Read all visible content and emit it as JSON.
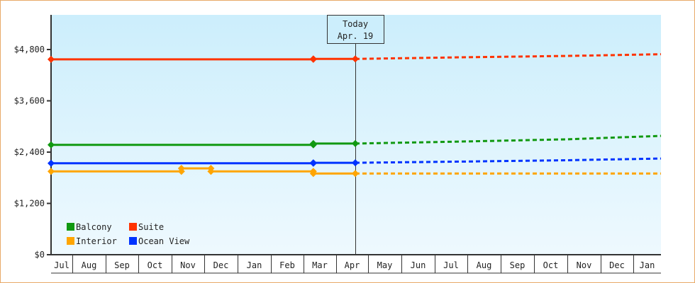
{
  "chart_data": {
    "type": "line",
    "title": "",
    "xlabel": "",
    "ylabel": "",
    "ylim": [
      0,
      5600
    ],
    "yticks": [
      {
        "value": 0,
        "label": "$0"
      },
      {
        "value": 1200,
        "label": "$1,200"
      },
      {
        "value": 2400,
        "label": "$2,400"
      },
      {
        "value": 3600,
        "label": "$3,600"
      },
      {
        "value": 4800,
        "label": "$4,800"
      }
    ],
    "categories": [
      "Jul",
      "Aug",
      "Sep",
      "Oct",
      "Nov",
      "Dec",
      "Jan",
      "Feb",
      "Mar",
      "Apr",
      "May",
      "Jun",
      "Jul",
      "Aug",
      "Sep",
      "Oct",
      "Nov",
      "Dec",
      "Jan"
    ],
    "today_marker": {
      "line1": "Today",
      "line2": "Apr. 19"
    },
    "grid": false,
    "legend_position": "bottom-left inside",
    "series": [
      {
        "name": "Balcony",
        "color": "#119911",
        "history": [
          [
            0,
            2570
          ],
          [
            8.3,
            2570
          ],
          [
            8.3,
            2600
          ],
          [
            9.6,
            2600
          ]
        ],
        "forecast": [
          [
            9.6,
            2600
          ],
          [
            13,
            2650
          ],
          [
            16,
            2700
          ],
          [
            19,
            2780
          ]
        ],
        "markers": [
          0,
          8.3,
          9.6
        ]
      },
      {
        "name": "Suite",
        "color": "#ff3300",
        "history": [
          [
            0,
            4570
          ],
          [
            8.3,
            4570
          ],
          [
            8.3,
            4580
          ],
          [
            9.6,
            4580
          ]
        ],
        "forecast": [
          [
            9.6,
            4580
          ],
          [
            13,
            4620
          ],
          [
            16,
            4650
          ],
          [
            19,
            4690
          ]
        ],
        "markers": [
          0,
          8.3,
          9.6
        ]
      },
      {
        "name": "Interior",
        "color": "#ffa500",
        "history": [
          [
            0,
            1950
          ],
          [
            4.3,
            1950
          ],
          [
            4.3,
            2020
          ],
          [
            5.2,
            2020
          ],
          [
            5.2,
            1950
          ],
          [
            8.3,
            1950
          ],
          [
            8.3,
            1900
          ],
          [
            9.6,
            1900
          ]
        ],
        "forecast": [
          [
            9.6,
            1900
          ],
          [
            19,
            1900
          ]
        ],
        "markers": [
          0,
          4.3,
          5.2,
          8.3,
          9.6
        ]
      },
      {
        "name": "Ocean View",
        "color": "#0033ff",
        "history": [
          [
            0,
            2140
          ],
          [
            8.3,
            2140
          ],
          [
            8.3,
            2150
          ],
          [
            9.6,
            2150
          ]
        ],
        "forecast": [
          [
            9.6,
            2150
          ],
          [
            13,
            2180
          ],
          [
            16,
            2210
          ],
          [
            19,
            2250
          ]
        ],
        "markers": [
          0,
          8.3,
          9.6
        ]
      }
    ]
  }
}
